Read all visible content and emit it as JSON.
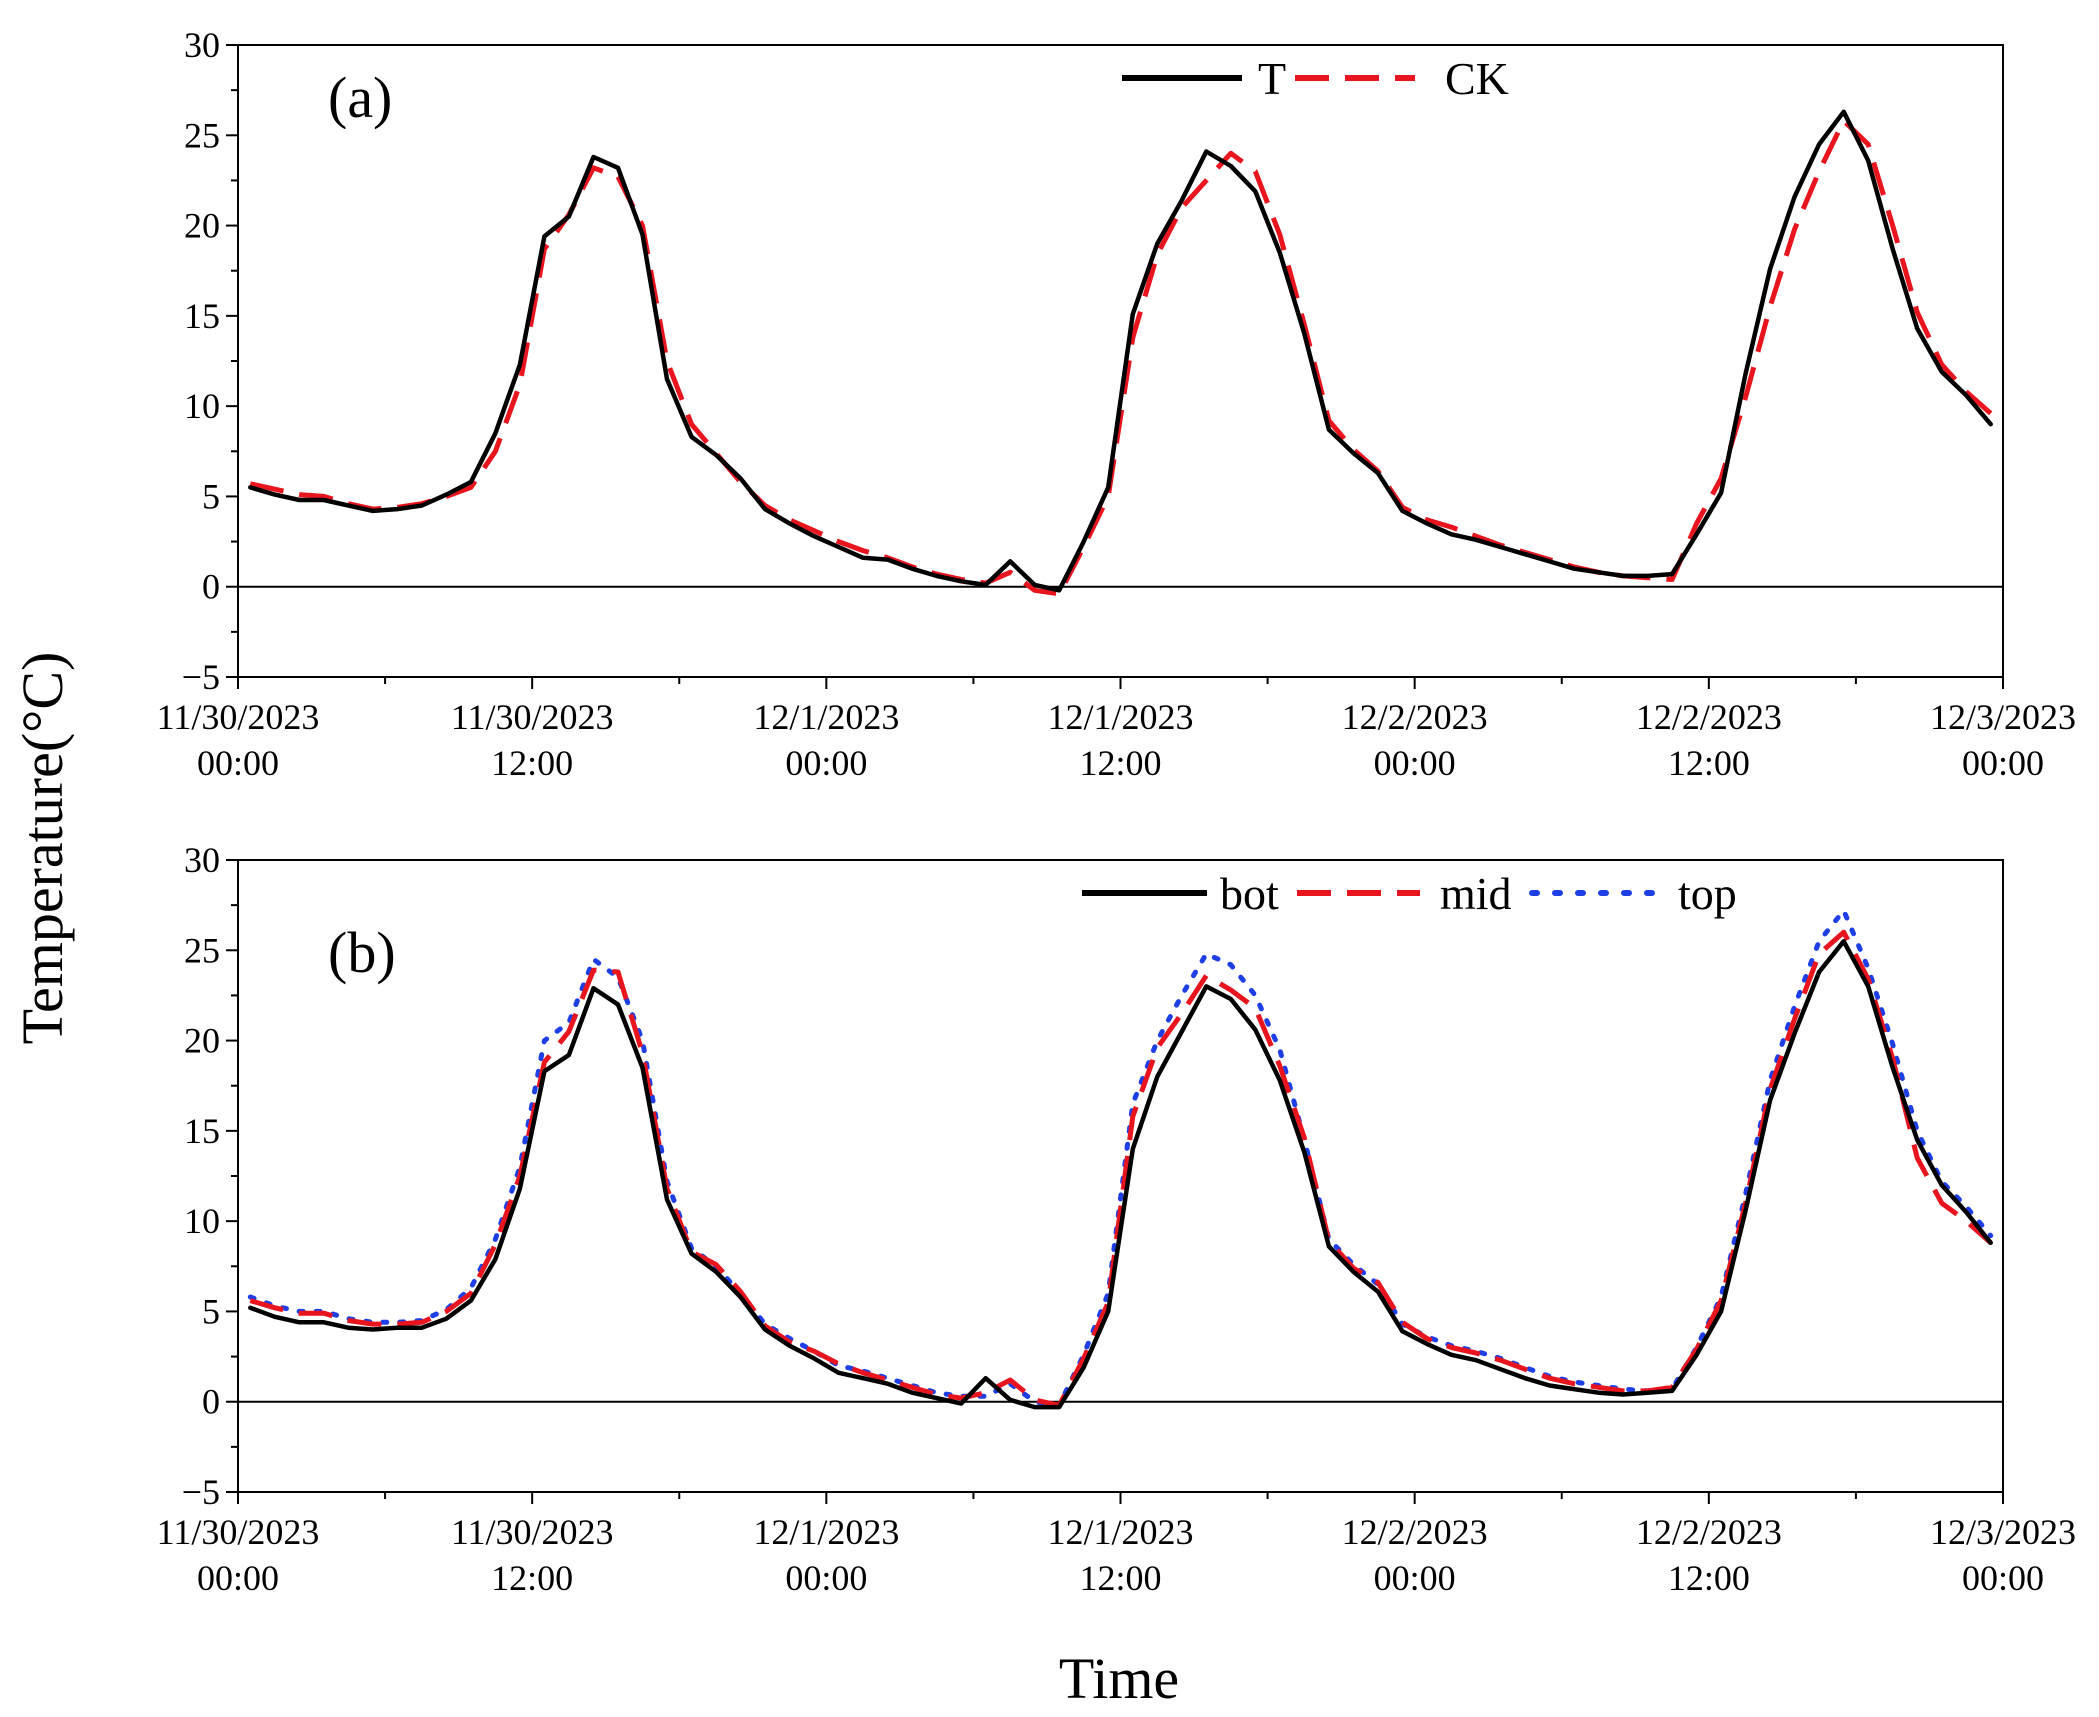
{
  "ylabel": "Temperature(°C)",
  "xlabel": "Time",
  "colors": {
    "T": "#000000",
    "CK": "#e8141e",
    "bot": "#000000",
    "mid": "#e8141e",
    "top": "#1f3fe6"
  },
  "chart_data": [
    {
      "type": "line",
      "panel_label": "(a)",
      "ylim": [
        -5,
        30
      ],
      "yticks": [
        "-5",
        "0",
        "5",
        "10",
        "15",
        "20",
        "25",
        "30"
      ],
      "xlim_hours": [
        0,
        72
      ],
      "xticks": [
        {
          "date": "11/30/2023",
          "time": "00:00"
        },
        {
          "date": "11/30/2023",
          "time": "12:00"
        },
        {
          "date": "12/1/2023",
          "time": "00:00"
        },
        {
          "date": "12/1/2023",
          "time": "12:00"
        },
        {
          "date": "12/2/2023",
          "time": "00:00"
        },
        {
          "date": "12/2/2023",
          "time": "12:00"
        },
        {
          "date": "12/3/2023",
          "time": "00:00"
        }
      ],
      "x_hours": [
        0.5,
        1.5,
        2.5,
        3.5,
        4.5,
        5.5,
        6.5,
        7.5,
        8.5,
        9.5,
        10.5,
        11.5,
        12.5,
        13.5,
        14.5,
        15.5,
        16.5,
        17.5,
        18.5,
        19.5,
        20.5,
        21.5,
        22.5,
        23.5,
        24.5,
        25.5,
        26.5,
        27.5,
        28.5,
        29.5,
        30.5,
        31.5,
        32.5,
        33.5,
        34.5,
        35.5,
        36.5,
        37.5,
        38.5,
        39.5,
        40.5,
        41.5,
        42.5,
        43.5,
        44.5,
        45.5,
        46.5,
        47.5,
        48.5,
        49.5,
        50.5,
        51.5,
        52.5,
        53.5,
        54.5,
        55.5,
        56.5,
        57.5,
        58.5,
        59.5,
        60.5,
        61.5,
        62.5,
        63.5,
        64.5,
        65.5,
        66.5,
        67.5,
        68.5,
        69.5,
        70.5,
        71.5
      ],
      "series": [
        {
          "name": "T",
          "style": "solid",
          "values": [
            5.5,
            5.1,
            4.8,
            4.8,
            4.5,
            4.2,
            4.3,
            4.5,
            5.1,
            5.8,
            8.5,
            12.3,
            19.4,
            20.5,
            23.8,
            23.2,
            19.5,
            11.5,
            8.3,
            7.3,
            6.0,
            4.3,
            3.5,
            2.8,
            2.2,
            1.6,
            1.5,
            1.0,
            0.6,
            0.3,
            0.1,
            1.4,
            0.1,
            -0.2,
            2.5,
            5.5,
            15.1,
            19.0,
            21.4,
            24.1,
            23.3,
            21.9,
            18.5,
            14.0,
            8.7,
            7.4,
            6.3,
            4.2,
            3.5,
            2.9,
            2.6,
            2.2,
            1.8,
            1.4,
            1.0,
            0.8,
            0.6,
            0.6,
            0.7,
            2.9,
            5.2,
            11.8,
            17.6,
            21.6,
            24.5,
            26.3,
            23.6,
            18.7,
            14.3,
            11.9,
            10.6,
            9.0
          ]
        },
        {
          "name": "CK",
          "style": "dashed",
          "values": [
            5.7,
            5.4,
            5.1,
            5.0,
            4.6,
            4.3,
            4.4,
            4.6,
            5.0,
            5.5,
            7.5,
            11.2,
            18.7,
            20.6,
            23.2,
            22.7,
            20.0,
            12.5,
            9.0,
            7.4,
            5.8,
            4.5,
            3.7,
            3.1,
            2.5,
            2.0,
            1.6,
            1.1,
            0.7,
            0.4,
            0.2,
            0.8,
            -0.2,
            -0.4,
            2.2,
            5.0,
            13.8,
            18.4,
            21.0,
            22.5,
            24.0,
            23.0,
            19.5,
            14.5,
            9.2,
            7.6,
            6.4,
            4.4,
            3.7,
            3.3,
            2.8,
            2.3,
            1.9,
            1.5,
            1.1,
            0.8,
            0.6,
            0.5,
            0.4,
            3.5,
            6.0,
            10.5,
            15.5,
            19.8,
            23.0,
            25.8,
            24.5,
            20.0,
            15.2,
            12.3,
            10.8,
            9.6
          ]
        }
      ]
    },
    {
      "type": "line",
      "panel_label": "(b)",
      "ylim": [
        -5,
        30
      ],
      "yticks": [
        "-5",
        "0",
        "5",
        "10",
        "15",
        "20",
        "25",
        "30"
      ],
      "xlim_hours": [
        0,
        72
      ],
      "xticks": [
        {
          "date": "11/30/2023",
          "time": "00:00"
        },
        {
          "date": "11/30/2023",
          "time": "12:00"
        },
        {
          "date": "12/1/2023",
          "time": "00:00"
        },
        {
          "date": "12/1/2023",
          "time": "12:00"
        },
        {
          "date": "12/2/2023",
          "time": "00:00"
        },
        {
          "date": "12/2/2023",
          "time": "12:00"
        },
        {
          "date": "12/3/2023",
          "time": "00:00"
        }
      ],
      "x_hours": [
        0.5,
        1.5,
        2.5,
        3.5,
        4.5,
        5.5,
        6.5,
        7.5,
        8.5,
        9.5,
        10.5,
        11.5,
        12.5,
        13.5,
        14.5,
        15.5,
        16.5,
        17.5,
        18.5,
        19.5,
        20.5,
        21.5,
        22.5,
        23.5,
        24.5,
        25.5,
        26.5,
        27.5,
        28.5,
        29.5,
        30.5,
        31.5,
        32.5,
        33.5,
        34.5,
        35.5,
        36.5,
        37.5,
        38.5,
        39.5,
        40.5,
        41.5,
        42.5,
        43.5,
        44.5,
        45.5,
        46.5,
        47.5,
        48.5,
        49.5,
        50.5,
        51.5,
        52.5,
        53.5,
        54.5,
        55.5,
        56.5,
        57.5,
        58.5,
        59.5,
        60.5,
        61.5,
        62.5,
        63.5,
        64.5,
        65.5,
        66.5,
        67.5,
        68.5,
        69.5,
        70.5,
        71.5
      ],
      "series": [
        {
          "name": "bot",
          "style": "solid",
          "values": [
            5.2,
            4.7,
            4.4,
            4.4,
            4.1,
            4.0,
            4.1,
            4.1,
            4.6,
            5.6,
            7.9,
            11.8,
            18.3,
            19.2,
            22.9,
            22.0,
            18.5,
            11.2,
            8.2,
            7.2,
            5.8,
            4.0,
            3.1,
            2.4,
            1.6,
            1.3,
            1.0,
            0.5,
            0.2,
            -0.1,
            1.3,
            0.1,
            -0.3,
            -0.3,
            1.9,
            5.0,
            14.0,
            18.0,
            20.5,
            23.0,
            22.3,
            20.6,
            17.8,
            13.8,
            8.6,
            7.2,
            6.1,
            3.9,
            3.2,
            2.6,
            2.3,
            1.8,
            1.3,
            0.9,
            0.7,
            0.5,
            0.4,
            0.5,
            0.6,
            2.6,
            5.0,
            10.6,
            16.7,
            20.4,
            23.8,
            25.5,
            23.0,
            18.5,
            14.5,
            12.0,
            10.5,
            8.8
          ]
        },
        {
          "name": "mid",
          "style": "dashed",
          "values": [
            5.6,
            5.2,
            4.9,
            4.9,
            4.5,
            4.3,
            4.3,
            4.4,
            5.0,
            6.0,
            8.7,
            12.5,
            18.8,
            20.5,
            23.9,
            23.8,
            19.3,
            11.8,
            8.3,
            7.6,
            6.1,
            4.2,
            3.3,
            2.8,
            2.1,
            1.6,
            1.2,
            0.8,
            0.4,
            0.2,
            0.5,
            1.2,
            0.1,
            -0.2,
            2.4,
            5.5,
            15.8,
            19.6,
            21.5,
            23.6,
            22.8,
            21.8,
            18.6,
            14.6,
            8.9,
            7.4,
            6.6,
            4.4,
            3.5,
            3.0,
            2.7,
            2.3,
            1.8,
            1.3,
            1.0,
            0.8,
            0.6,
            0.6,
            0.8,
            2.9,
            5.6,
            11.0,
            17.3,
            21.2,
            24.8,
            26.0,
            23.4,
            19.0,
            13.5,
            11.0,
            10.0,
            8.8
          ]
        },
        {
          "name": "top",
          "style": "dotted",
          "values": [
            5.8,
            5.3,
            5.0,
            5.0,
            4.6,
            4.4,
            4.4,
            4.5,
            5.1,
            6.3,
            9.0,
            13.0,
            20.0,
            21.0,
            24.5,
            23.5,
            20.0,
            12.2,
            8.5,
            7.5,
            6.0,
            4.3,
            3.5,
            2.8,
            2.0,
            1.7,
            1.3,
            0.9,
            0.5,
            0.3,
            0.3,
            1.0,
            0.0,
            -0.2,
            2.6,
            6.0,
            16.5,
            20.0,
            22.5,
            24.8,
            24.2,
            22.5,
            19.5,
            14.5,
            9.0,
            7.6,
            6.5,
            4.3,
            3.6,
            3.1,
            2.8,
            2.4,
            1.9,
            1.4,
            1.1,
            0.9,
            0.7,
            0.6,
            0.7,
            3.0,
            5.8,
            11.5,
            17.8,
            21.9,
            25.5,
            27.2,
            24.0,
            19.8,
            15.0,
            12.2,
            10.8,
            9.2
          ]
        }
      ]
    }
  ]
}
